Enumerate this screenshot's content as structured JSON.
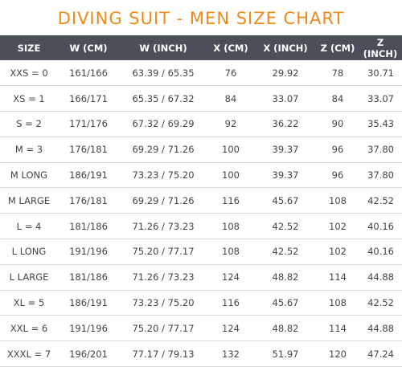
{
  "title": "DIVING SUIT - MEN SIZE CHART",
  "columns": [
    "SIZE",
    "W (CM)",
    "W (INCH)",
    "X (CM)",
    "X (INCH)",
    "Z (CM)",
    "Z (INCH)"
  ],
  "rows": [
    [
      "XXS = 0",
      "161/166",
      "63.39 / 65.35",
      "76",
      "29.92",
      "78",
      "30.71"
    ],
    [
      "XS = 1",
      "166/171",
      "65.35 / 67.32",
      "84",
      "33.07",
      "84",
      "33.07"
    ],
    [
      "S = 2",
      "171/176",
      "67.32 / 69.29",
      "92",
      "36.22",
      "90",
      "35.43"
    ],
    [
      "M = 3",
      "176/181",
      "69.29 / 71.26",
      "100",
      "39.37",
      "96",
      "37.80"
    ],
    [
      "M LONG",
      "186/191",
      "73.23 / 75.20",
      "100",
      "39.37",
      "96",
      "37.80"
    ],
    [
      "M LARGE",
      "176/181",
      "69.29 / 71.26",
      "116",
      "45.67",
      "108",
      "42.52"
    ],
    [
      "L = 4",
      "181/186",
      "71.26 / 73.23",
      "108",
      "42.52",
      "102",
      "40.16"
    ],
    [
      "L LONG",
      "191/196",
      "75.20 / 77.17",
      "108",
      "42.52",
      "102",
      "40.16"
    ],
    [
      "L LARGE",
      "181/186",
      "71.26 / 73.23",
      "124",
      "48.82",
      "114",
      "44.88"
    ],
    [
      "XL = 5",
      "186/191",
      "73.23 / 75.20",
      "116",
      "45.67",
      "108",
      "42.52"
    ],
    [
      "XXL = 6",
      "191/196",
      "75.20 / 77.17",
      "124",
      "48.82",
      "114",
      "44.88"
    ],
    [
      "XXXL = 7",
      "196/201",
      "77.17 / 79.13",
      "132",
      "51.97",
      "120",
      "47.24"
    ]
  ]
}
